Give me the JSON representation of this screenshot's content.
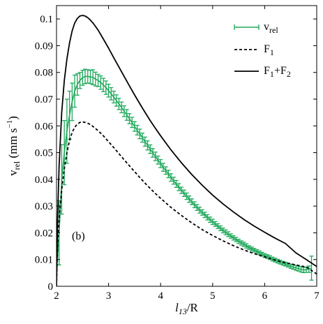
{
  "chart_data": {
    "type": "line",
    "panel_label": "(b)",
    "xlabel": {
      "main": "l",
      "sub": "13",
      "suffix": "/R"
    },
    "ylabel": {
      "main": "v",
      "sub": "rel",
      "units_pre": " (mm s",
      "units_sup": "−1",
      "units_post": ")"
    },
    "xlim": [
      2,
      7
    ],
    "ylim": [
      0,
      0.105
    ],
    "xticks": [
      2,
      3,
      4,
      5,
      6,
      7
    ],
    "xtick_labels": [
      "2",
      "3",
      "4",
      "5",
      "6",
      "7"
    ],
    "yticks": [
      0,
      0.01,
      0.02,
      0.03,
      0.04,
      0.05,
      0.06,
      0.07,
      0.08,
      0.09,
      0.1
    ],
    "ytick_labels": [
      "0",
      "0.01",
      "0.02",
      "0.03",
      "0.04",
      "0.05",
      "0.06",
      "0.07",
      "0.08",
      "0.09",
      "0.1"
    ],
    "grid": false,
    "legend_placement": "top-right",
    "series": [
      {
        "key": "vrel",
        "legend": {
          "main": "v",
          "sub": "rel"
        },
        "color": "#1fa85a",
        "style": "solid-errorbars",
        "x": [
          2.0,
          2.05,
          2.1,
          2.15,
          2.2,
          2.25,
          2.3,
          2.35,
          2.4,
          2.45,
          2.5,
          2.55,
          2.6,
          2.65,
          2.7,
          2.75,
          2.8,
          2.85,
          2.9,
          2.95,
          3.0,
          3.05,
          3.1,
          3.15,
          3.2,
          3.25,
          3.3,
          3.35,
          3.4,
          3.45,
          3.5,
          3.55,
          3.6,
          3.65,
          3.7,
          3.75,
          3.8,
          3.85,
          3.9,
          3.95,
          4.0,
          4.05,
          4.1,
          4.15,
          4.2,
          4.25,
          4.3,
          4.35,
          4.4,
          4.45,
          4.5,
          4.55,
          4.6,
          4.65,
          4.7,
          4.75,
          4.8,
          4.85,
          4.9,
          4.95,
          5.0,
          5.05,
          5.1,
          5.15,
          5.2,
          5.25,
          5.3,
          5.35,
          5.4,
          5.45,
          5.5,
          5.55,
          5.6,
          5.65,
          5.7,
          5.75,
          5.8,
          5.85,
          5.9,
          5.95,
          6.0,
          6.05,
          6.1,
          6.15,
          6.2,
          6.25,
          6.3,
          6.35,
          6.4,
          6.45,
          6.5,
          6.55,
          6.6,
          6.65,
          6.7,
          6.75,
          6.8,
          6.85,
          6.9
        ],
        "y": [
          0.005,
          0.02,
          0.04,
          0.05,
          0.058,
          0.064,
          0.069,
          0.073,
          0.0755,
          0.077,
          0.078,
          0.0785,
          0.0785,
          0.0783,
          0.0782,
          0.0775,
          0.077,
          0.0762,
          0.0753,
          0.0743,
          0.0732,
          0.072,
          0.0708,
          0.0695,
          0.0682,
          0.0669,
          0.0655,
          0.0641,
          0.0627,
          0.0613,
          0.0598,
          0.0584,
          0.057,
          0.0556,
          0.0541,
          0.0527,
          0.0513,
          0.0499,
          0.0486,
          0.0472,
          0.0459,
          0.0445,
          0.0433,
          0.042,
          0.0407,
          0.0395,
          0.0383,
          0.0371,
          0.0359,
          0.0348,
          0.0337,
          0.0326,
          0.0316,
          0.0305,
          0.0295,
          0.0285,
          0.0276,
          0.0267,
          0.0258,
          0.0249,
          0.0241,
          0.0233,
          0.0225,
          0.0217,
          0.0209,
          0.0202,
          0.0195,
          0.0188,
          0.0181,
          0.0175,
          0.0168,
          0.0162,
          0.0157,
          0.0151,
          0.0145,
          0.014,
          0.0135,
          0.013,
          0.0125,
          0.012,
          0.0115,
          0.0111,
          0.0107,
          0.0102,
          0.0098,
          0.0094,
          0.009,
          0.0086,
          0.0083,
          0.0079,
          0.0075,
          0.0072,
          0.0069,
          0.0066,
          0.0063,
          0.0061,
          0.0062,
          0.0064,
          0.0068
        ],
        "err": [
          0.012,
          0.012,
          0.013,
          0.012,
          0.012,
          0.009,
          0.007,
          0.006,
          0.004,
          0.003,
          0.0028,
          0.0027,
          0.0025,
          0.0025,
          0.0028,
          0.0026,
          0.0023,
          0.0025,
          0.0025,
          0.0025,
          0.0024,
          0.0023,
          0.0022,
          0.0021,
          0.0021,
          0.002,
          0.002,
          0.002,
          0.0019,
          0.0019,
          0.0018,
          0.0018,
          0.0018,
          0.0017,
          0.0017,
          0.0017,
          0.0016,
          0.0016,
          0.0016,
          0.0015,
          0.0015,
          0.0015,
          0.0014,
          0.0014,
          0.0014,
          0.0013,
          0.0013,
          0.0013,
          0.0012,
          0.0012,
          0.0012,
          0.0012,
          0.0011,
          0.0011,
          0.0011,
          0.0011,
          0.001,
          0.001,
          0.001,
          0.001,
          0.001,
          0.0009,
          0.0009,
          0.0009,
          0.0009,
          0.0009,
          0.0009,
          0.0008,
          0.0008,
          0.0008,
          0.0008,
          0.0008,
          0.0008,
          0.0008,
          0.0007,
          0.0007,
          0.0007,
          0.0007,
          0.0007,
          0.0007,
          0.0007,
          0.0007,
          0.0007,
          0.0007,
          0.0007,
          0.0007,
          0.0007,
          0.0007,
          0.0007,
          0.0007,
          0.0008,
          0.0008,
          0.0009,
          0.0009,
          0.001,
          0.001,
          0.001,
          0.0012,
          0.0045
        ]
      },
      {
        "key": "F1",
        "legend": {
          "main": "F",
          "sub": "1"
        },
        "color": "#000000",
        "style": "dashed",
        "x": [
          2.0,
          2.02,
          2.05,
          2.1,
          2.15,
          2.2,
          2.25,
          2.3,
          2.35,
          2.4,
          2.45,
          2.5,
          2.55,
          2.6,
          2.65,
          2.7,
          2.8,
          2.9,
          3.0,
          3.1,
          3.2,
          3.3,
          3.4,
          3.5,
          3.6,
          3.7,
          3.8,
          3.9,
          4.0,
          4.2,
          4.4,
          4.6,
          4.8,
          5.0,
          5.2,
          5.4,
          5.6,
          5.8,
          6.0,
          6.2,
          6.4,
          6.6,
          6.8,
          7.0
        ],
        "y": [
          0.0,
          0.015,
          0.025,
          0.036,
          0.044,
          0.05,
          0.0545,
          0.0575,
          0.0595,
          0.0607,
          0.0613,
          0.0615,
          0.0613,
          0.061,
          0.0605,
          0.0598,
          0.0582,
          0.0563,
          0.0541,
          0.0519,
          0.0496,
          0.0473,
          0.0451,
          0.0429,
          0.0407,
          0.0386,
          0.0366,
          0.0347,
          0.0329,
          0.0295,
          0.0265,
          0.0237,
          0.0212,
          0.019,
          0.017,
          0.0152,
          0.0136,
          0.0122,
          0.011,
          0.0098,
          0.0088,
          0.008,
          0.0072,
          0.0046
        ]
      },
      {
        "key": "F1F2",
        "legend": {
          "main": "F",
          "sub": "1",
          "plus": "+F",
          "sub2": "2"
        },
        "color": "#000000",
        "style": "solid",
        "x": [
          2.0,
          2.02,
          2.05,
          2.1,
          2.15,
          2.2,
          2.25,
          2.3,
          2.35,
          2.4,
          2.45,
          2.5,
          2.55,
          2.6,
          2.65,
          2.7,
          2.75,
          2.8,
          2.9,
          3.0,
          3.1,
          3.2,
          3.3,
          3.4,
          3.5,
          3.6,
          3.7,
          3.8,
          3.9,
          4.0,
          4.2,
          4.4,
          4.6,
          4.8,
          5.0,
          5.2,
          5.4,
          5.6,
          5.8,
          6.0,
          6.2,
          6.4,
          6.6,
          6.8,
          7.0
        ],
        "y": [
          0.0,
          0.025,
          0.045,
          0.065,
          0.077,
          0.085,
          0.091,
          0.0955,
          0.0985,
          0.1002,
          0.1011,
          0.1013,
          0.1011,
          0.1005,
          0.0996,
          0.0985,
          0.0972,
          0.0958,
          0.0925,
          0.0891,
          0.0855,
          0.082,
          0.0785,
          0.075,
          0.0716,
          0.0683,
          0.0651,
          0.062,
          0.0591,
          0.0563,
          0.051,
          0.0462,
          0.0418,
          0.0378,
          0.0341,
          0.0308,
          0.0278,
          0.025,
          0.0225,
          0.0202,
          0.018,
          0.016,
          0.0125,
          0.01,
          0.0074
        ]
      }
    ]
  }
}
